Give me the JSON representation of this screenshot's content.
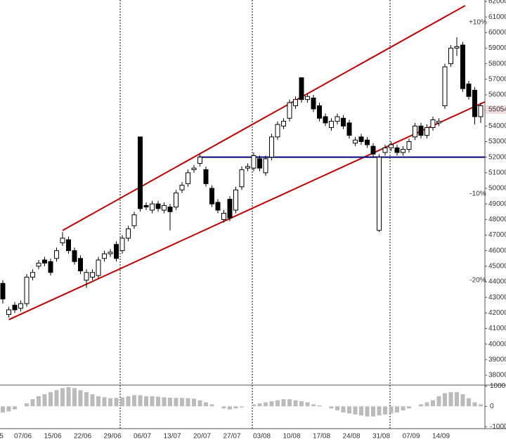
{
  "chart_data": [
    {
      "type": "candlestick",
      "x_labels": [
        "5",
        "07/06",
        "15/06",
        "22/06",
        "29/06",
        "06/07",
        "13/07",
        "20/07",
        "27/07",
        "03/08",
        "10/08",
        "17/08",
        "24/08",
        "31/08",
        "07/09",
        "14/09"
      ],
      "open": [
        43900,
        41900,
        42500,
        42300,
        42600,
        44300,
        45000,
        45400,
        45300,
        45500,
        46500,
        46700,
        46000,
        45500,
        44100,
        44300,
        44400,
        45500,
        45800,
        46400,
        46000,
        46800,
        47600,
        53300,
        48900,
        48600,
        49000,
        48600,
        48800,
        48800,
        49900,
        50300,
        51200,
        51600,
        51200,
        50000,
        49100,
        48000,
        49300,
        48600,
        50100,
        51300,
        51300,
        51900,
        51000,
        52000,
        53300,
        54000,
        54500,
        55300,
        57100,
        55700,
        55800,
        55300,
        54600,
        53900,
        54300,
        54500,
        54200,
        52900,
        53300,
        53100,
        52700,
        47300,
        52300,
        52600,
        52600,
        52300,
        52500,
        53300,
        54000,
        53400,
        53900,
        54200,
        55300,
        58000,
        59000,
        59200,
        56700,
        56300,
        54600
      ],
      "close": [
        42900,
        42200,
        42200,
        42600,
        44300,
        44600,
        45200,
        45200,
        44600,
        46000,
        46800,
        46000,
        45300,
        44700,
        44600,
        44600,
        45400,
        45800,
        45900,
        45500,
        46800,
        47400,
        48300,
        48700,
        48800,
        49000,
        48700,
        48900,
        48500,
        49700,
        50200,
        51000,
        51300,
        52000,
        50300,
        49000,
        48600,
        48400,
        48100,
        49900,
        51200,
        51400,
        52100,
        51300,
        51900,
        53300,
        54100,
        54300,
        55500,
        55700,
        55700,
        55900,
        55100,
        54500,
        54200,
        54300,
        54600,
        54000,
        53400,
        53100,
        53000,
        52800,
        52200,
        52000,
        52600,
        52800,
        52300,
        52500,
        53000,
        54000,
        53400,
        53900,
        54400,
        54300,
        57800,
        59000,
        59100,
        56400,
        55900,
        54600,
        55300
      ],
      "high": [
        44100,
        42400,
        42700,
        42800,
        44500,
        44800,
        45400,
        45600,
        45500,
        46200,
        47200,
        46900,
        46200,
        45700,
        44800,
        44800,
        45600,
        46000,
        46100,
        46600,
        47000,
        47600,
        48500,
        53300,
        49100,
        49200,
        49200,
        49100,
        49000,
        49900,
        50400,
        51200,
        51500,
        52200,
        51400,
        50200,
        49300,
        48600,
        49500,
        50100,
        51400,
        51600,
        52300,
        52100,
        52100,
        53500,
        54300,
        54500,
        55700,
        55900,
        57100,
        56100,
        56000,
        55500,
        54800,
        54500,
        54800,
        54700,
        54400,
        53300,
        53500,
        53300,
        52900,
        52200,
        52800,
        53000,
        52800,
        52700,
        53200,
        54200,
        54200,
        54100,
        54600,
        54500,
        58000,
        59200,
        59700,
        59400,
        56900,
        56500,
        55500
      ],
      "low": [
        42600,
        41700,
        42000,
        42100,
        42400,
        44100,
        44800,
        45000,
        44400,
        45300,
        46300,
        45800,
        45100,
        44500,
        43600,
        44100,
        44200,
        45300,
        45600,
        45300,
        45800,
        46600,
        47400,
        48500,
        48600,
        48400,
        48500,
        48400,
        47300,
        48600,
        49700,
        50100,
        51000,
        51400,
        50100,
        48800,
        48400,
        47800,
        47900,
        48400,
        49900,
        51100,
        51100,
        51100,
        50800,
        51800,
        53100,
        53800,
        54300,
        55100,
        55500,
        55500,
        54900,
        54300,
        54000,
        53700,
        54100,
        53800,
        53200,
        52700,
        52800,
        52600,
        52000,
        47200,
        52100,
        52400,
        52100,
        52100,
        52300,
        53100,
        53200,
        53200,
        53700,
        54000,
        55100,
        57800,
        58500,
        56200,
        55700,
        54100,
        54200
      ],
      "up_color": "#ffffff",
      "down_color": "#000000",
      "edge_color": "#000000",
      "ylim": [
        37370,
        62090
      ],
      "yticks": [
        38000,
        39000,
        40000,
        41000,
        42000,
        43000,
        44000,
        45000,
        46000,
        47000,
        48000,
        49000,
        50000,
        51000,
        52000,
        53000,
        54000,
        55000,
        56000,
        57000,
        58000,
        59000,
        60000,
        61000,
        62000
      ],
      "trend_lines": [
        {
          "color": "#c00000",
          "from": {
            "index": 10,
            "value": 47295
          },
          "to": {
            "index": 77.4,
            "value": 61730
          }
        },
        {
          "color": "#c00000",
          "from": {
            "index": 1,
            "value": 41567
          },
          "to": {
            "index": 80.7,
            "value": 55550
          }
        },
        {
          "color": "#000080",
          "from": {
            "index": 32.7,
            "value": 52000
          },
          "to": {
            "index": 80.7,
            "value": 52000
          }
        }
      ],
      "annotations": [
        {
          "text": "+10%",
          "color": "#2e8b2e"
        },
        {
          "text": "-10%",
          "color": "#c00000"
        },
        {
          "text": "-20%",
          "color": "#c00000"
        }
      ],
      "last_price": 55054
    },
    {
      "type": "bar",
      "values": [
        -300,
        -250,
        -150,
        0,
        150,
        350,
        500,
        600,
        700,
        800,
        900,
        950,
        900,
        800,
        700,
        600,
        500,
        450,
        400,
        420,
        450,
        500,
        550,
        550,
        500,
        500,
        480,
        450,
        430,
        420,
        420,
        400,
        380,
        300,
        200,
        100,
        0,
        -100,
        -150,
        -100,
        -50,
        0,
        100,
        150,
        200,
        250,
        300,
        350,
        350,
        300,
        250,
        200,
        100,
        50,
        0,
        -100,
        -200,
        -300,
        -350,
        -400,
        -450,
        -500,
        -500,
        -450,
        -400,
        -350,
        -300,
        -200,
        -100,
        0,
        100,
        200,
        300,
        500,
        650,
        700,
        700,
        600,
        400,
        200,
        100
      ],
      "color": "#bbbbbb",
      "ylim": [
        -1100,
        1050
      ],
      "yticks": [
        -1000,
        0,
        1000
      ]
    }
  ]
}
